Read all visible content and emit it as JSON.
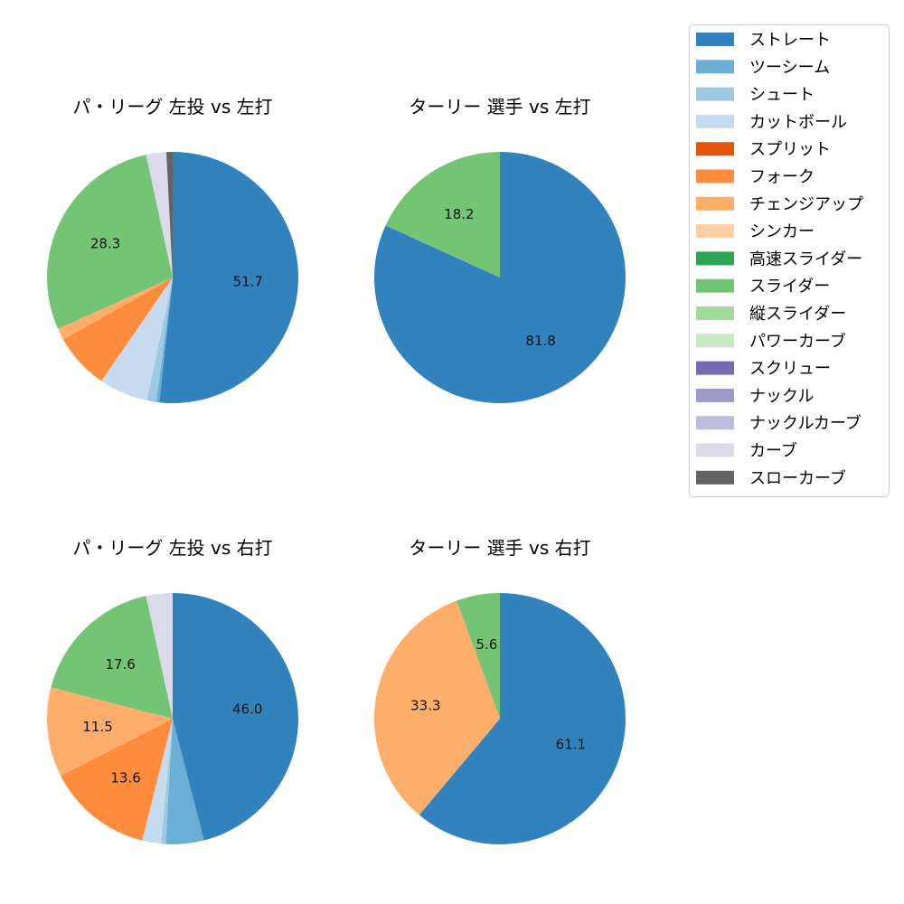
{
  "chart_data": {
    "type": "pie",
    "legend": {
      "placement": "top-right",
      "entries": [
        {
          "label": "ストレート",
          "color": "#3182bd"
        },
        {
          "label": "ツーシーム",
          "color": "#6baed6"
        },
        {
          "label": "シュート",
          "color": "#9ecae1"
        },
        {
          "label": "カットボール",
          "color": "#c6dbef"
        },
        {
          "label": "スプリット",
          "color": "#e6550d"
        },
        {
          "label": "フォーク",
          "color": "#fd8d3c"
        },
        {
          "label": "チェンジアップ",
          "color": "#fdae6b"
        },
        {
          "label": "シンカー",
          "color": "#fdd0a2"
        },
        {
          "label": "高速スライダー",
          "color": "#31a354"
        },
        {
          "label": "スライダー",
          "color": "#74c476"
        },
        {
          "label": "縦スライダー",
          "color": "#a1d99b"
        },
        {
          "label": "パワーカーブ",
          "color": "#c7e9c0"
        },
        {
          "label": "スクリュー",
          "color": "#756bb1"
        },
        {
          "label": "ナックル",
          "color": "#9e9ac8"
        },
        {
          "label": "ナックルカーブ",
          "color": "#bcbddc"
        },
        {
          "label": "カーブ",
          "color": "#dadaeb"
        },
        {
          "label": "スローカーブ",
          "color": "#636363"
        }
      ]
    },
    "charts": [
      {
        "title": "パ・リーグ 左投 vs 左打",
        "slices": [
          [
            "ストレート",
            51.7,
            "51.7"
          ],
          [
            "ツーシーム",
            0.4,
            ""
          ],
          [
            "シュート",
            1.2,
            ""
          ],
          [
            "カットボール",
            6.3,
            ""
          ],
          [
            "フォーク",
            7.2,
            ""
          ],
          [
            "チェンジアップ",
            1.5,
            ""
          ],
          [
            "スライダー",
            28.3,
            "28.3"
          ],
          [
            "カーブ",
            2.6,
            ""
          ],
          [
            "スローカーブ",
            0.8,
            ""
          ]
        ]
      },
      {
        "title": "ターリー 選手 vs 左打",
        "slices": [
          [
            "ストレート",
            81.8,
            "81.8"
          ],
          [
            "スライダー",
            18.2,
            "18.2"
          ]
        ]
      },
      {
        "title": "パ・リーグ 左投 vs 右打",
        "slices": [
          [
            "ストレート",
            46.0,
            "46.0"
          ],
          [
            "ツーシーム",
            4.9,
            ""
          ],
          [
            "シュート",
            0.6,
            ""
          ],
          [
            "カットボール",
            2.4,
            ""
          ],
          [
            "フォーク",
            13.6,
            "13.6"
          ],
          [
            "チェンジアップ",
            11.5,
            "11.5"
          ],
          [
            "スライダー",
            17.6,
            "17.6"
          ],
          [
            "カーブ",
            3.4,
            ""
          ]
        ]
      },
      {
        "title": "ターリー 選手 vs 右打",
        "slices": [
          [
            "ストレート",
            61.1,
            "61.1"
          ],
          [
            "チェンジアップ",
            33.3,
            "33.3"
          ],
          [
            "スライダー",
            5.6,
            "5.6"
          ]
        ]
      }
    ]
  }
}
